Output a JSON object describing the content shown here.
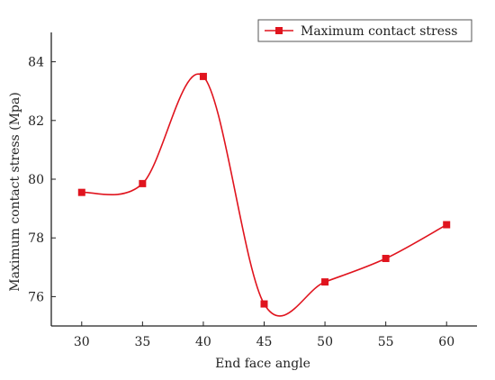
{
  "chart_data": {
    "type": "line",
    "xlabel": "End face angle",
    "ylabel": "Maximum contact stress (Mpa)",
    "x": [
      30,
      35,
      40,
      45,
      50,
      55,
      60
    ],
    "series": [
      {
        "name": "Maximum contact stress",
        "values": [
          79.55,
          79.85,
          83.5,
          75.75,
          76.5,
          77.3,
          78.45
        ],
        "color": "#e0141e"
      }
    ],
    "xlim": [
      27.5,
      62.5
    ],
    "ylim": [
      75,
      85
    ],
    "xticks": [
      "30",
      "35",
      "40",
      "45",
      "50",
      "55",
      "60"
    ],
    "yticks": [
      "76",
      "78",
      "80",
      "82",
      "84"
    ],
    "smooth": true,
    "marker": "square",
    "grid": false,
    "legend_position": "top-right"
  }
}
